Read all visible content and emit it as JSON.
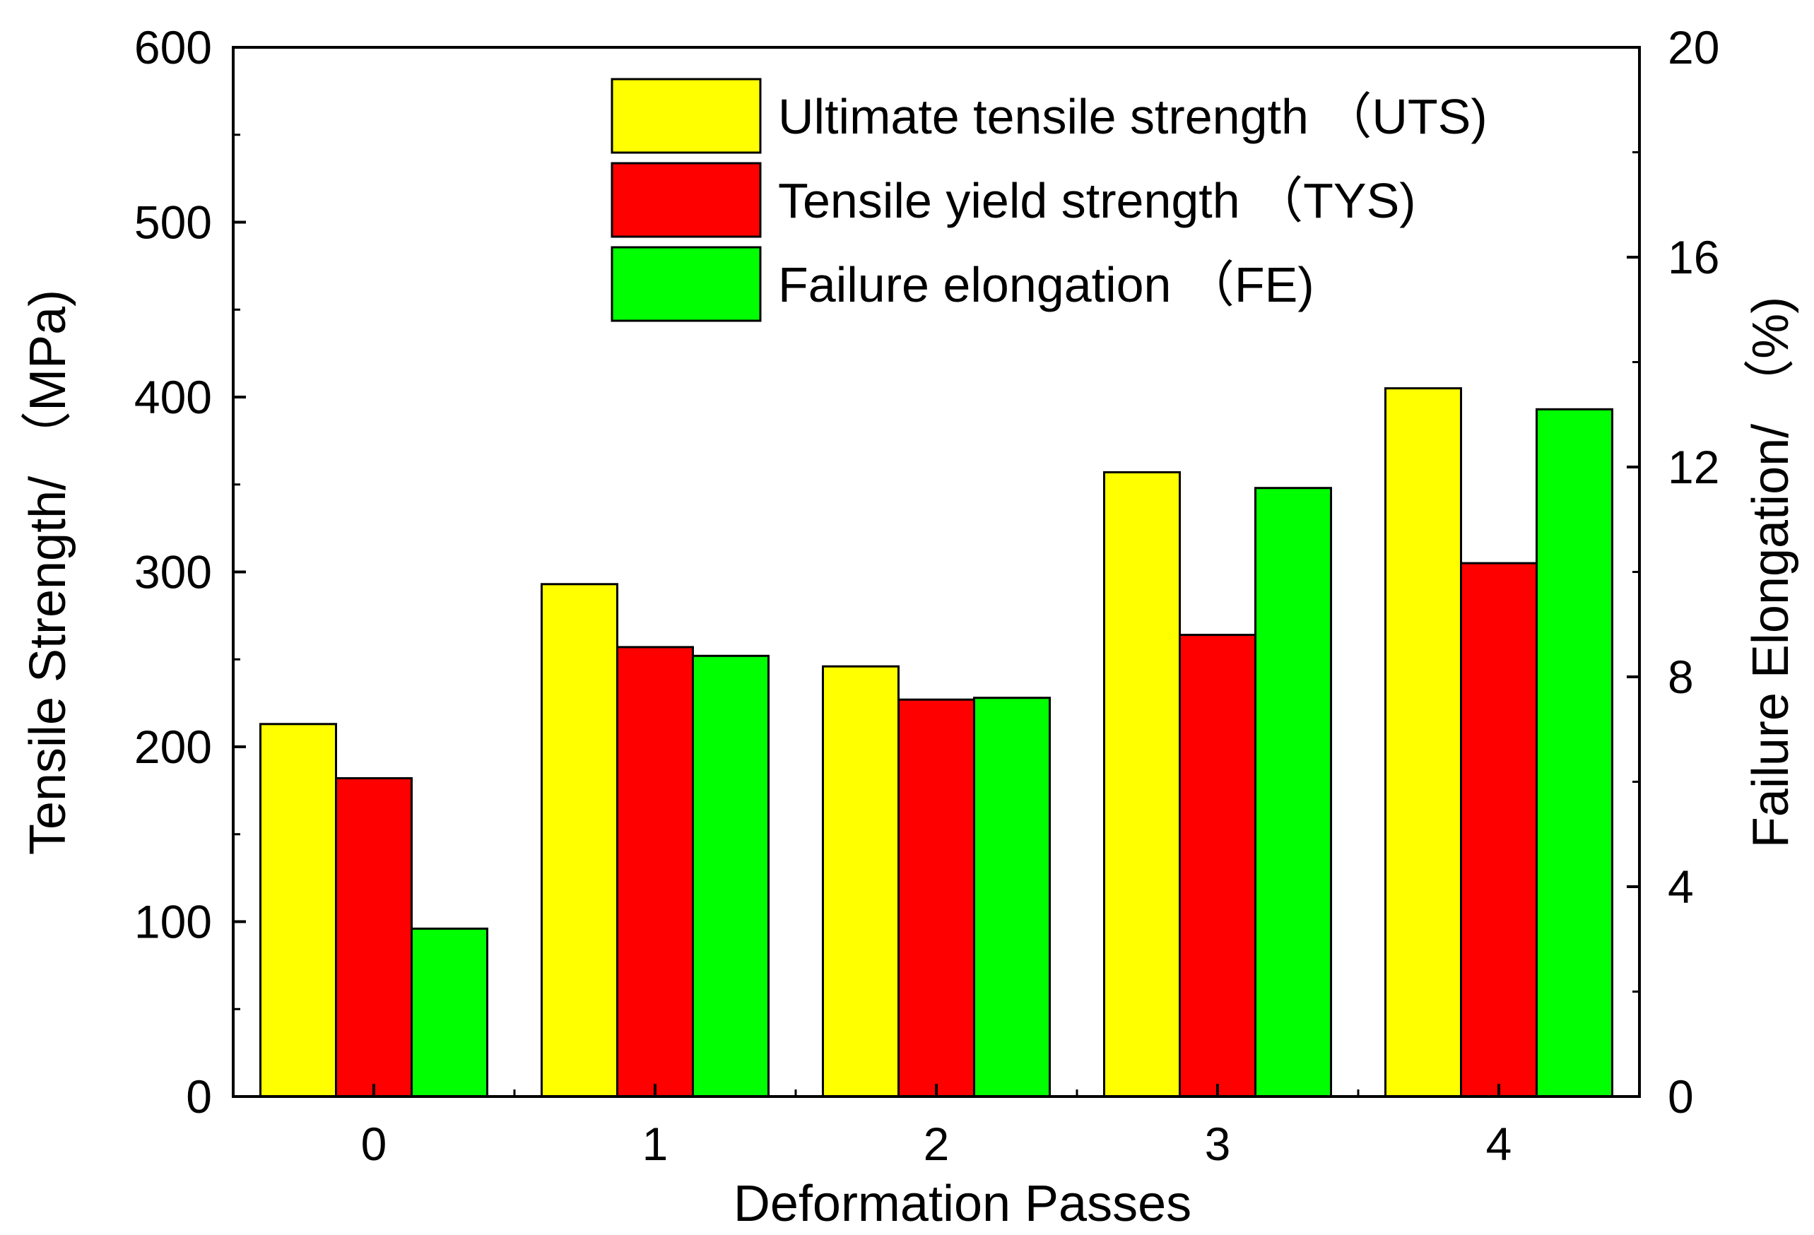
{
  "chart_data": {
    "type": "bar",
    "xlabel": "Deformation Passes",
    "ylabel": "Tensile Strength/ （MPa)",
    "y2label": "Failure Elongation/ （%)",
    "categories": [
      "0",
      "1",
      "2",
      "3",
      "4"
    ],
    "ylim": [
      0,
      600
    ],
    "y2lim": [
      0,
      20
    ],
    "yticks": [
      "0",
      "100",
      "200",
      "300",
      "400",
      "500",
      "600"
    ],
    "y2ticks": [
      "0",
      "4",
      "8",
      "12",
      "16",
      "20"
    ],
    "series": [
      {
        "name": "Ultimate tensile strength （UTS)",
        "axis": "left",
        "color": "#ffff00",
        "values": [
          213,
          293,
          246,
          357,
          405
        ]
      },
      {
        "name": "Tensile yield strength （TYS)",
        "axis": "left",
        "color": "#ff0000",
        "values": [
          182,
          257,
          227,
          264,
          305
        ]
      },
      {
        "name": "Failure elongation （FE)",
        "axis": "right",
        "color": "#00ff00",
        "values": [
          3.2,
          8.4,
          7.6,
          11.6,
          13.1
        ]
      }
    ]
  }
}
